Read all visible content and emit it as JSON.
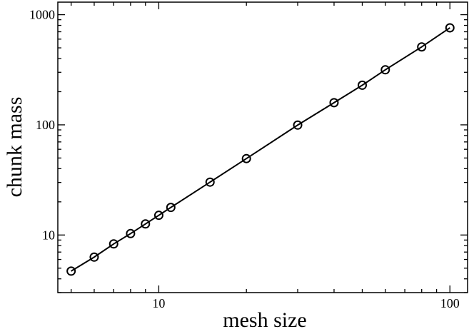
{
  "chart_data": {
    "type": "scatter",
    "xlabel": "mesh size",
    "ylabel": "chunk mass",
    "x_scale": "log",
    "y_scale": "log",
    "xlim": [
      4.5,
      115
    ],
    "ylim": [
      3.0,
      1300
    ],
    "x_ticks": [
      {
        "value": 10,
        "label": "10"
      },
      {
        "value": 100,
        "label": "100"
      }
    ],
    "y_ticks": [
      {
        "value": 10,
        "label": "10"
      },
      {
        "value": 100,
        "label": "100"
      },
      {
        "value": 1000,
        "label": "1000"
      }
    ],
    "grid": false,
    "legend": "none",
    "series": [
      {
        "line": true,
        "marker": "open-circle",
        "color": "#000000",
        "x": [
          5,
          6,
          7,
          8,
          9,
          10,
          11,
          15,
          20,
          30,
          40,
          50,
          60,
          80,
          100
        ],
        "y": [
          4.7,
          6.3,
          8.3,
          10.3,
          12.6,
          15.1,
          17.8,
          30.2,
          49.4,
          99.5,
          159,
          229,
          316,
          510,
          760
        ]
      }
    ]
  }
}
